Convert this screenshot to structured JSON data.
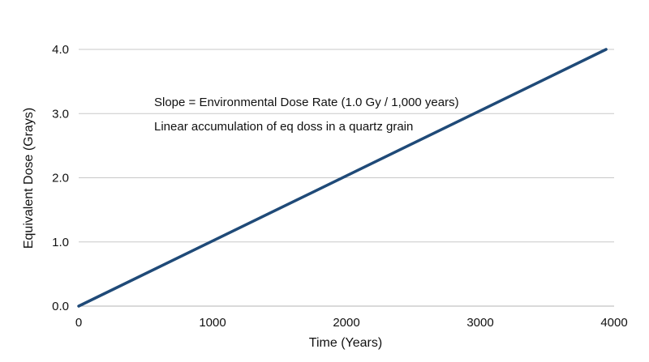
{
  "chart_data": {
    "type": "line",
    "title": "",
    "xlabel": "Time (Years)",
    "ylabel": "Equivalent Dose (Grays)",
    "xlim": [
      0,
      4000
    ],
    "ylim": [
      0,
      4.0
    ],
    "x_ticks": [
      "0",
      "1000",
      "2000",
      "3000",
      "4000"
    ],
    "y_ticks": [
      "0.0",
      "1.0",
      "2.0",
      "3.0",
      "4.0"
    ],
    "grid": "horizontal",
    "legend": "none",
    "series": [
      {
        "color": "#1f4a78",
        "x": [
          0,
          3940
        ],
        "y": [
          0.0,
          4.0
        ]
      }
    ],
    "annotations": [
      "Slope = Environmental Dose Rate (1.0 Gy / 1,000 years)",
      "Linear accumulation of eq doss in a quartz grain"
    ]
  }
}
